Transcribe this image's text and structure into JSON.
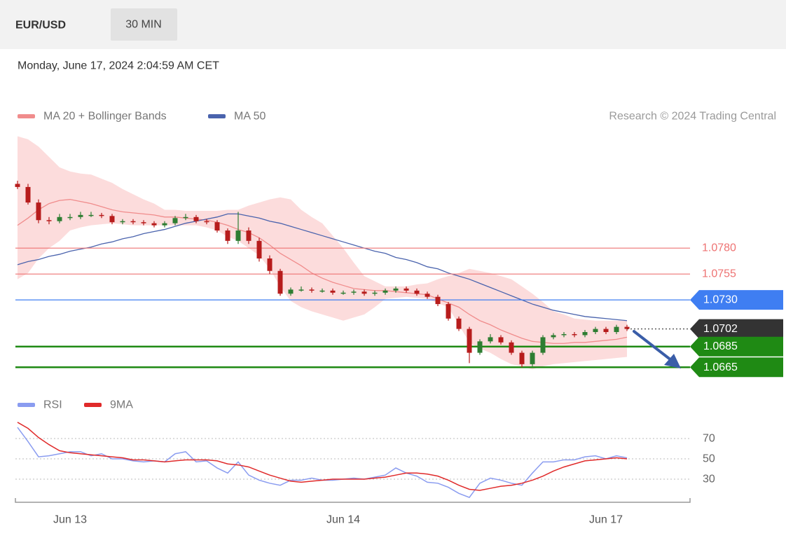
{
  "header": {
    "symbol": "EUR/USD",
    "interval": "30 MIN",
    "timestamp": "Monday, June 17, 2024 2:04:59 AM CET"
  },
  "source": "Research © 2024 Trading Central",
  "chart_data": [
    {
      "type": "candlestick",
      "ylim": [
        1.0651,
        1.0891
      ],
      "up_color": "#2e7d32",
      "down_color": "#b71c1c",
      "open": [
        1.0842,
        1.0839,
        1.0824,
        1.0807,
        1.0806,
        1.081,
        1.081,
        1.0812,
        1.0812,
        1.0811,
        1.0805,
        1.0806,
        1.0805,
        1.0804,
        1.0802,
        1.0804,
        1.0809,
        1.081,
        1.0806,
        1.0805,
        1.0797,
        1.0787,
        1.0797,
        1.0787,
        1.077,
        1.0758,
        1.0736,
        1.074,
        1.074,
        1.0739,
        1.0739,
        1.0737,
        1.0737,
        1.0738,
        1.0736,
        1.0737,
        1.0739,
        1.0741,
        1.0739,
        1.0736,
        1.0733,
        1.0726,
        1.0712,
        1.0702,
        1.0679,
        1.069,
        1.0694,
        1.0689,
        1.0679,
        1.0668,
        1.0679,
        1.0694,
        1.0696,
        1.0697,
        1.0696,
        1.0699,
        1.0702,
        1.0699,
        1.0704
      ],
      "high": [
        1.0845,
        1.0842,
        1.0827,
        1.081,
        1.0813,
        1.0813,
        1.0815,
        1.0815,
        1.0814,
        1.0813,
        1.0808,
        1.0808,
        1.0807,
        1.0806,
        1.0806,
        1.0811,
        1.0813,
        1.0812,
        1.0808,
        1.0807,
        1.0799,
        1.0815,
        1.08,
        1.079,
        1.0773,
        1.076,
        1.0742,
        1.0743,
        1.0742,
        1.0741,
        1.0741,
        1.0739,
        1.074,
        1.074,
        1.0739,
        1.0741,
        1.0743,
        1.0743,
        1.0741,
        1.0738,
        1.0735,
        1.0728,
        1.0714,
        1.0704,
        1.0692,
        1.0697,
        1.0696,
        1.0691,
        1.0681,
        1.0681,
        1.0696,
        1.0698,
        1.0699,
        1.0699,
        1.0701,
        1.0704,
        1.0704,
        1.0706,
        1.0706
      ],
      "low": [
        1.0837,
        1.0822,
        1.0804,
        1.0803,
        1.0804,
        1.0807,
        1.0808,
        1.081,
        1.0809,
        1.0803,
        1.0803,
        1.0803,
        1.0802,
        1.08,
        1.08,
        1.0802,
        1.0807,
        1.0804,
        1.0803,
        1.0795,
        1.0784,
        1.0784,
        1.0784,
        1.0767,
        1.0755,
        1.0734,
        1.0734,
        1.0738,
        1.0737,
        1.0737,
        1.0735,
        1.0735,
        1.0735,
        1.0734,
        1.0734,
        1.0735,
        1.0737,
        1.0737,
        1.0734,
        1.0731,
        1.0724,
        1.071,
        1.07,
        1.0669,
        1.0677,
        1.0688,
        1.0687,
        1.0677,
        1.0665,
        1.0666,
        1.0677,
        1.0692,
        1.0694,
        1.0694,
        1.0694,
        1.0697,
        1.0697,
        1.0697,
        1.07
      ],
      "close": [
        1.0839,
        1.0824,
        1.0807,
        1.0806,
        1.081,
        1.081,
        1.0812,
        1.0812,
        1.0811,
        1.0805,
        1.0806,
        1.0805,
        1.0804,
        1.0802,
        1.0804,
        1.0809,
        1.081,
        1.0806,
        1.0805,
        1.0797,
        1.0787,
        1.0797,
        1.0787,
        1.077,
        1.0758,
        1.0736,
        1.074,
        1.074,
        1.0739,
        1.0739,
        1.0737,
        1.0737,
        1.0738,
        1.0736,
        1.0737,
        1.0739,
        1.0741,
        1.0739,
        1.0736,
        1.0733,
        1.0726,
        1.0712,
        1.0702,
        1.0679,
        1.069,
        1.0694,
        1.0689,
        1.0679,
        1.0668,
        1.0679,
        1.0694,
        1.0696,
        1.0697,
        1.0696,
        1.0699,
        1.0702,
        1.0699,
        1.0704,
        1.0702
      ],
      "series": [
        {
          "name": "MA 20 + Bollinger Bands",
          "color": "#f08c8c",
          "band_color": "#fcd6d6",
          "values": [
            1.0802,
            1.0809,
            1.0817,
            1.0823,
            1.0826,
            1.0827,
            1.0825,
            1.0823,
            1.082,
            1.0817,
            1.0815,
            1.0814,
            1.0813,
            1.0812,
            1.081,
            1.081,
            1.0809,
            1.0808,
            1.0807,
            1.0805,
            1.0802,
            1.0798,
            1.0795,
            1.079,
            1.0783,
            1.0775,
            1.0769,
            1.0763,
            1.0756,
            1.0751,
            1.0747,
            1.0744,
            1.0741,
            1.074,
            1.0739,
            1.0739,
            1.0738,
            1.0737,
            1.0736,
            1.0735,
            1.0731,
            1.0727,
            1.0723,
            1.0716,
            1.071,
            1.0706,
            1.0701,
            1.0697,
            1.0693,
            1.069,
            1.0689,
            1.0688,
            1.0688,
            1.0689,
            1.0689,
            1.069,
            1.0691,
            1.0692,
            1.0694
          ],
          "upper": [
            1.0888,
            1.0885,
            1.0878,
            1.0868,
            1.0858,
            1.0854,
            1.0852,
            1.0851,
            1.0847,
            1.0843,
            1.0837,
            1.0832,
            1.0827,
            1.0823,
            1.0817,
            1.0817,
            1.0816,
            1.0816,
            1.0816,
            1.0816,
            1.0817,
            1.0817,
            1.0821,
            1.0824,
            1.0827,
            1.0829,
            1.0827,
            1.0817,
            1.081,
            1.0804,
            1.0792,
            1.078,
            1.0766,
            1.0753,
            1.0748,
            1.0743,
            1.0743,
            1.0743,
            1.0745,
            1.0746,
            1.075,
            1.0753,
            1.0756,
            1.076,
            1.0758,
            1.0756,
            1.0753,
            1.075,
            1.0743,
            1.0736,
            1.0728,
            1.0719,
            1.0716,
            1.0712,
            1.0711,
            1.071,
            1.071,
            1.071,
            1.071
          ],
          "lower": [
            1.075,
            1.0756,
            1.077,
            1.078,
            1.0787,
            1.0797,
            1.08,
            1.0802,
            1.0803,
            1.0804,
            1.0803,
            1.0802,
            1.0802,
            1.0802,
            1.0802,
            1.0802,
            1.0802,
            1.0802,
            1.08,
            1.0797,
            1.0791,
            1.0787,
            1.078,
            1.0773,
            1.076,
            1.0743,
            1.0729,
            1.0723,
            1.0719,
            1.0716,
            1.0713,
            1.071,
            1.0713,
            1.0716,
            1.0723,
            1.0731,
            1.0732,
            1.0733,
            1.0732,
            1.0731,
            1.0727,
            1.0723,
            1.0706,
            1.0689,
            1.0683,
            1.0679,
            1.0673,
            1.0668,
            1.0666,
            1.0663,
            1.0666,
            1.0668,
            1.0669,
            1.067,
            1.0671,
            1.0672,
            1.0673,
            1.0674,
            1.0675
          ]
        },
        {
          "name": "MA 50",
          "color": "#4a63ad",
          "values": [
            1.0764,
            1.0767,
            1.0769,
            1.0772,
            1.0774,
            1.0777,
            1.0779,
            1.0781,
            1.0784,
            1.0786,
            1.0789,
            1.0791,
            1.0794,
            1.0796,
            1.0798,
            1.0801,
            1.0804,
            1.0806,
            1.0808,
            1.081,
            1.0813,
            1.0813,
            1.0811,
            1.0809,
            1.0806,
            1.0804,
            1.0801,
            1.0798,
            1.0795,
            1.0792,
            1.0789,
            1.0786,
            1.0783,
            1.078,
            1.0777,
            1.0775,
            1.0771,
            1.0769,
            1.0766,
            1.0762,
            1.076,
            1.0756,
            1.0753,
            1.075,
            1.0746,
            1.0742,
            1.0738,
            1.0734,
            1.073,
            1.0726,
            1.0723,
            1.072,
            1.0718,
            1.0716,
            1.0714,
            1.0713,
            1.0712,
            1.0711,
            1.071
          ]
        }
      ],
      "levels": [
        {
          "value": 1.078,
          "label": "1.0780",
          "color": "#ee7373",
          "line": "solid",
          "tag": false
        },
        {
          "value": 1.0755,
          "label": "1.0755",
          "color": "#ee7373",
          "line": "solid",
          "tag": false
        },
        {
          "value": 1.073,
          "label": "1.0730",
          "color": "#3f7ef2",
          "line": "solid",
          "tag": true
        },
        {
          "value": 1.0702,
          "label": "1.0702",
          "color": "#333333",
          "line": "dotted",
          "tag": true
        },
        {
          "value": 1.0685,
          "label": "1.0685",
          "color": "#1f8a14",
          "line": "thick",
          "tag": true
        },
        {
          "value": 1.0665,
          "label": "1.0665",
          "color": "#1f8a14",
          "line": "thick",
          "tag": true
        }
      ]
    },
    {
      "type": "line",
      "categories": [
        null,
        null,
        null,
        null,
        null,
        "Jun 13",
        null,
        null,
        null,
        null,
        null,
        null,
        null,
        null,
        null,
        null,
        null,
        null,
        null,
        null,
        null,
        null,
        null,
        null,
        null,
        null,
        null,
        null,
        null,
        null,
        null,
        "Jun 14",
        null,
        null,
        null,
        null,
        null,
        null,
        null,
        null,
        null,
        null,
        null,
        null,
        null,
        null,
        null,
        null,
        null,
        null,
        null,
        null,
        null,
        null,
        null,
        null,
        "Jun 17",
        null,
        null
      ],
      "ylim": [
        10,
        90
      ],
      "yticks": [
        70,
        50,
        30
      ],
      "grid": true,
      "series": [
        {
          "name": "RSI",
          "color": "#8a9cf0",
          "values": [
            81,
            67,
            52,
            53,
            55,
            57,
            57,
            53,
            55,
            50,
            50,
            48,
            47,
            48,
            47,
            55,
            57,
            47,
            48,
            41,
            36,
            47,
            34,
            29,
            26,
            24,
            29,
            29,
            31,
            29,
            29,
            30,
            31,
            30,
            32,
            34,
            41,
            36,
            33,
            27,
            26,
            22,
            16,
            12,
            26,
            31,
            29,
            26,
            24,
            36,
            47,
            47,
            49,
            49,
            52,
            53,
            50,
            53,
            51
          ]
        },
        {
          "name": "9MA",
          "color": "#e02a2a",
          "values": [
            86,
            80,
            71,
            64,
            58,
            56,
            55,
            54,
            53,
            52,
            51,
            49,
            49,
            48,
            47,
            48,
            49,
            49,
            49,
            48,
            45,
            44,
            42,
            38,
            34,
            31,
            28,
            27,
            28,
            29,
            30,
            30,
            30,
            30,
            31,
            32,
            34,
            36,
            36,
            35,
            33,
            29,
            24,
            20,
            19,
            21,
            23,
            24,
            26,
            29,
            33,
            38,
            42,
            45,
            48,
            49,
            50,
            51,
            50
          ]
        }
      ]
    }
  ]
}
